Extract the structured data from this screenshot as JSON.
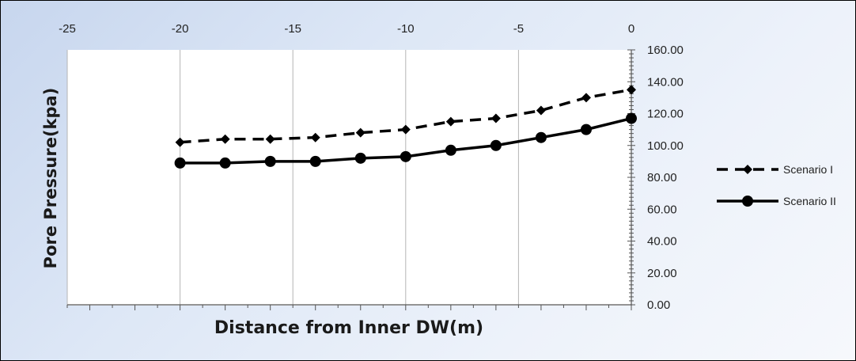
{
  "chart_data": {
    "type": "line",
    "xlabel": "Distance from Inner DW(m)",
    "ylabel": "Pore Pressure(kpa)",
    "xlim": [
      -25,
      0
    ],
    "ylim": [
      0,
      160
    ],
    "x_ticks": [
      "-25",
      "-20",
      "-15",
      "-10",
      "-5",
      "0"
    ],
    "y_ticks": [
      "0.00",
      "20.00",
      "40.00",
      "60.00",
      "80.00",
      "100.00",
      "120.00",
      "140.00",
      "160.00"
    ],
    "x_axis_position": "top",
    "y_axis_position": "right",
    "grid": "vertical gridlines",
    "legend_position": "right",
    "series": [
      {
        "name": "Scenario I",
        "style": "dashed",
        "marker": "diamond",
        "color": "#000000",
        "x": [
          -20,
          -18,
          -16,
          -14,
          -12,
          -10,
          -8,
          -6,
          -4,
          -2,
          0
        ],
        "values": [
          102,
          104,
          104,
          105,
          108,
          110,
          115,
          117,
          122,
          130,
          135
        ]
      },
      {
        "name": "Scenario II",
        "style": "solid",
        "marker": "circle",
        "color": "#000000",
        "x": [
          -20,
          -18,
          -16,
          -14,
          -12,
          -10,
          -8,
          -6,
          -4,
          -2,
          0
        ],
        "values": [
          89,
          89,
          90,
          90,
          92,
          93,
          97,
          100,
          105,
          110,
          117
        ]
      }
    ]
  }
}
